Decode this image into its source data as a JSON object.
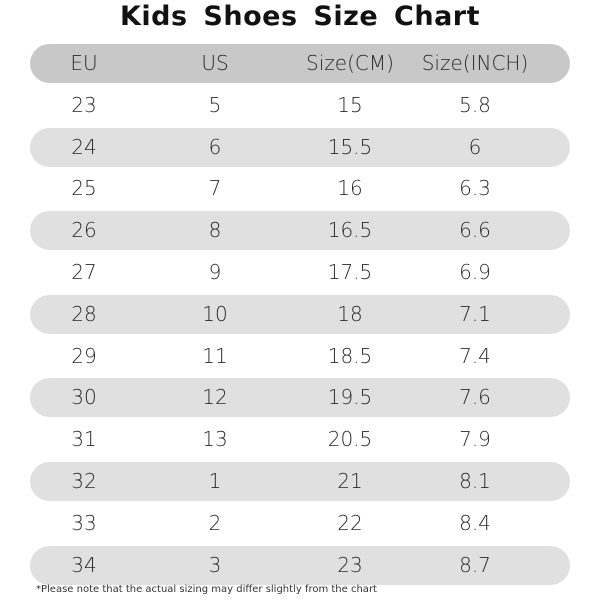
{
  "title": "Kids Shoes Size Chart",
  "note": "*Please note that the actual sizing may differ slightly from the chart",
  "colors": {
    "header_band": "#c8c8c8",
    "shaded_band": "#e0e0e0",
    "background": "#ffffff",
    "text": "#2a2a2a"
  },
  "chart_data": {
    "type": "table",
    "title": "Kids Shoes Size Chart",
    "columns": [
      "EU",
      "US",
      "Size(CM)",
      "Size(INCH)"
    ],
    "rows": [
      [
        "23",
        "5",
        "15",
        "5.8"
      ],
      [
        "24",
        "6",
        "15.5",
        "6"
      ],
      [
        "25",
        "7",
        "16",
        "6.3"
      ],
      [
        "26",
        "8",
        "16.5",
        "6.6"
      ],
      [
        "27",
        "9",
        "17.5",
        "6.9"
      ],
      [
        "28",
        "10",
        "18",
        "7.1"
      ],
      [
        "29",
        "11",
        "18.5",
        "7.4"
      ],
      [
        "30",
        "12",
        "19.5",
        "7.6"
      ],
      [
        "31",
        "13",
        "20.5",
        "7.9"
      ],
      [
        "32",
        "1",
        "21",
        "8.1"
      ],
      [
        "33",
        "2",
        "22",
        "8.4"
      ],
      [
        "34",
        "3",
        "23",
        "8.7"
      ]
    ],
    "annotation": "*Please note that the actual sizing may differ slightly from the chart"
  }
}
